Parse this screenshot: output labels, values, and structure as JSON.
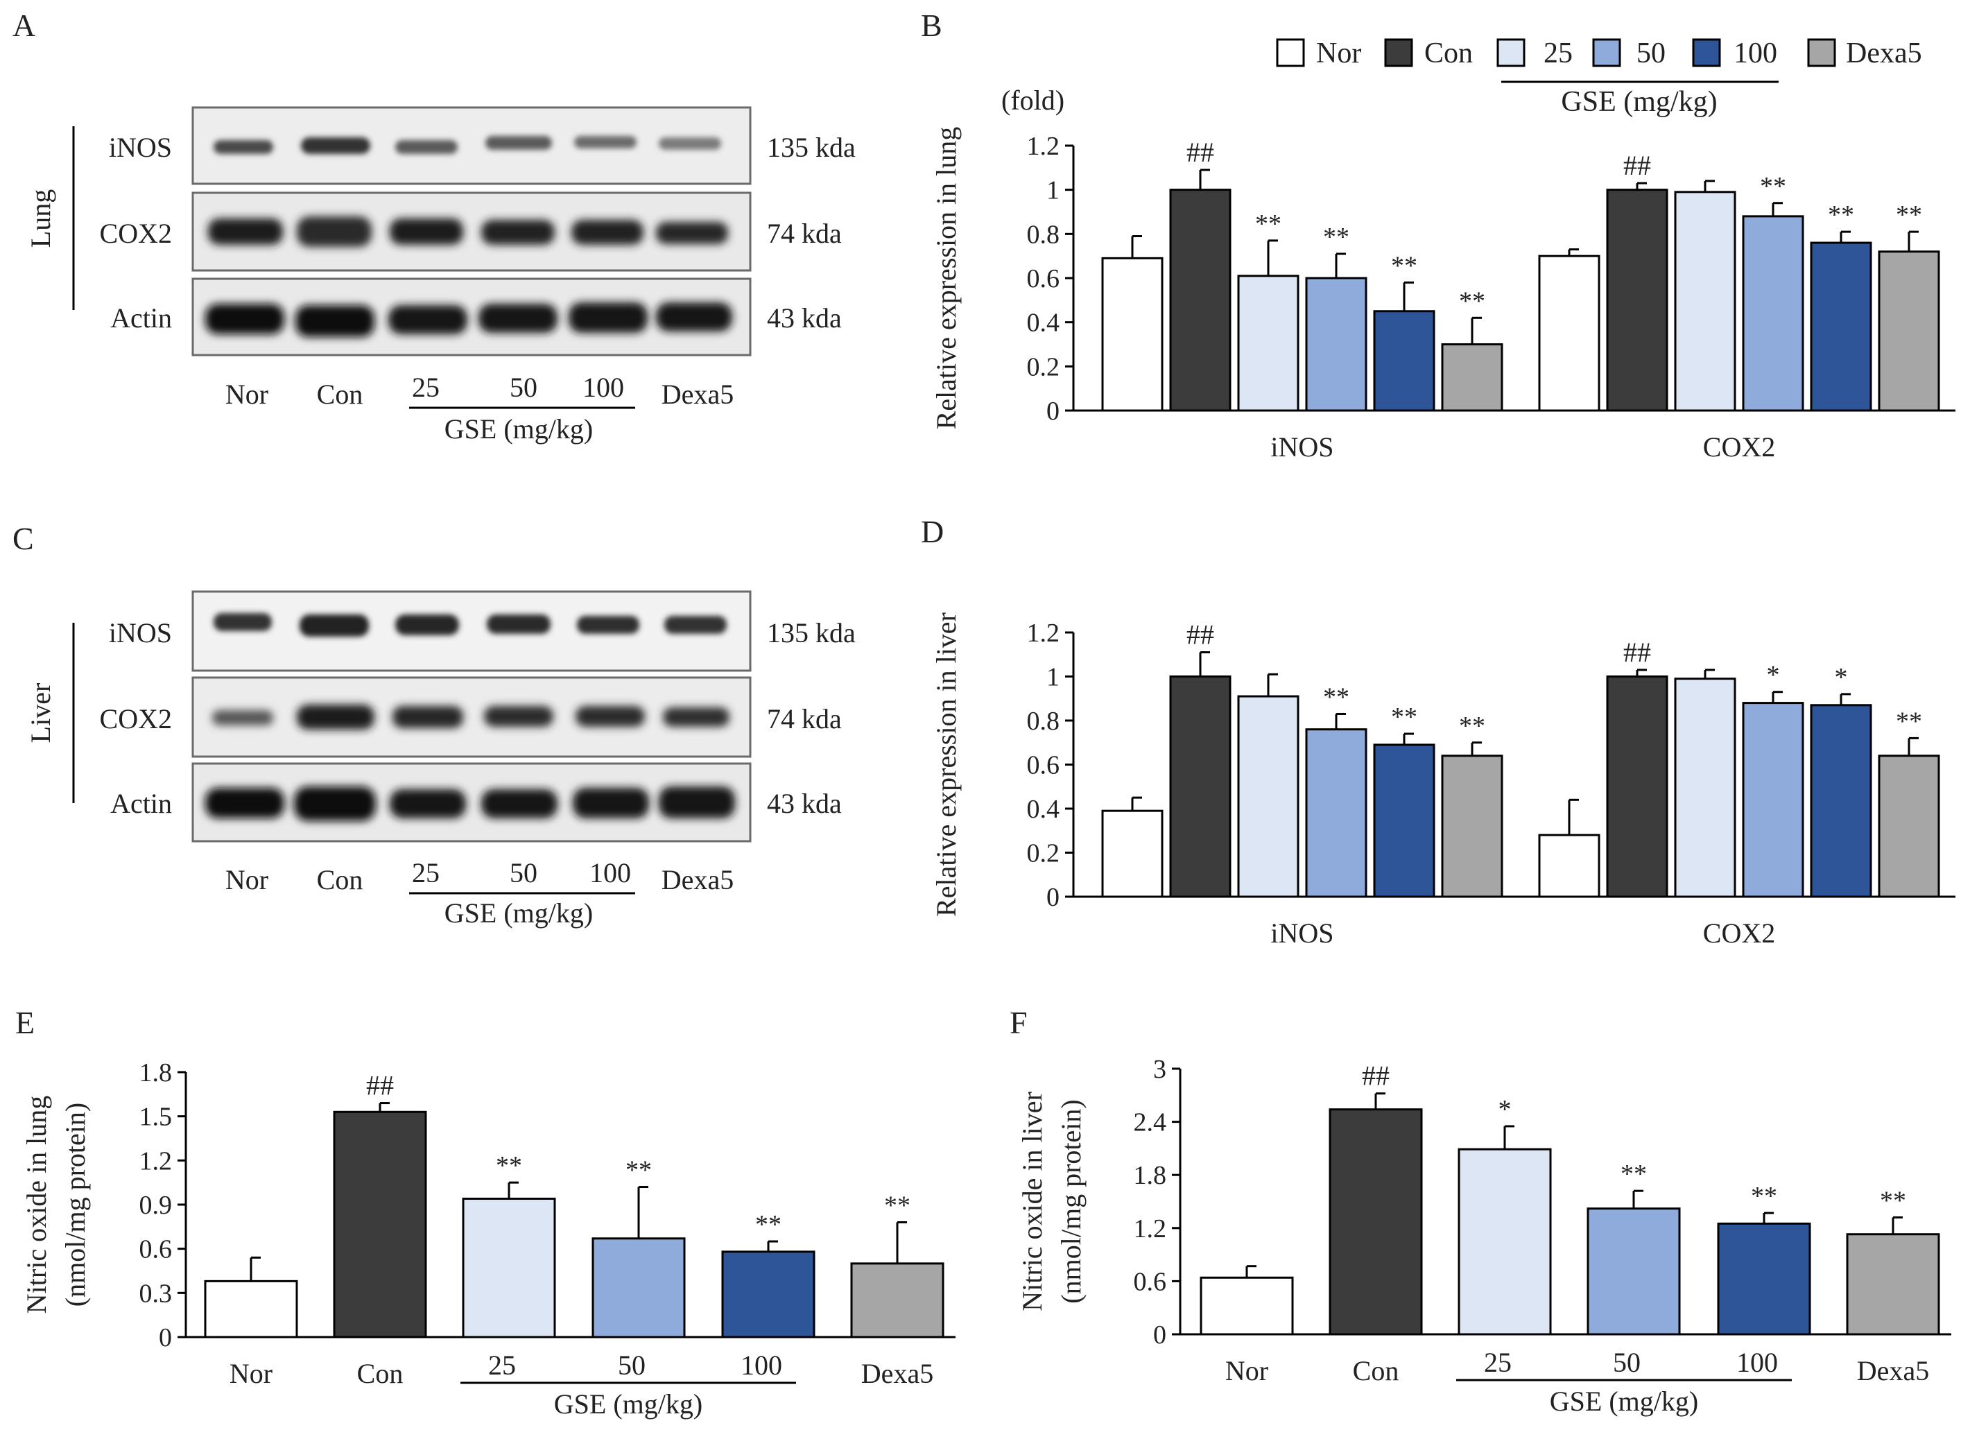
{
  "panel_labels": [
    "A",
    "B",
    "C",
    "D",
    "E",
    "F"
  ],
  "colors": {
    "nor": "#ffffff",
    "con": "#3c3c3c",
    "g25": "#dce6f4",
    "g50": "#8eabdc",
    "g100": "#2e5597",
    "dexa": "#a6a6a6",
    "axis": "#000000"
  },
  "legend": {
    "items": [
      "Nor",
      "Con",
      "25",
      "50",
      "100",
      "Dexa5"
    ],
    "group_label": "GSE (mg/kg)"
  },
  "blot_lung": {
    "tissue": "Lung",
    "rows": [
      {
        "protein": "iNOS",
        "size": "135 kda"
      },
      {
        "protein": "COX2",
        "size": "74 kda"
      },
      {
        "protein": "Actin",
        "size": "43 kda"
      }
    ],
    "lanes": [
      "Nor",
      "Con",
      "25",
      "50",
      "100",
      "Dexa5"
    ],
    "group_label": "GSE (mg/kg)"
  },
  "blot_liver": {
    "tissue": "Liver",
    "rows": [
      {
        "protein": "iNOS",
        "size": "135 kda"
      },
      {
        "protein": "COX2",
        "size": "74 kda"
      },
      {
        "protein": "Actin",
        "size": "43 kda"
      }
    ],
    "lanes": [
      "Nor",
      "Con",
      "25",
      "50",
      "100",
      "Dexa5"
    ],
    "group_label": "GSE (mg/kg)"
  },
  "chart_data": [
    {
      "panel": "B",
      "type": "bar",
      "ylabel": "Relative  expression  in  lung",
      "unit_label": "(fold)",
      "yticks": [
        "0",
        "0.2",
        "0.4",
        "0.6",
        "0.8",
        "1",
        "1.2"
      ],
      "ylim": [
        0,
        1.2
      ],
      "categories": [
        "iNOS",
        "COX2"
      ],
      "series": [
        {
          "name": "Nor",
          "values": [
            0.69,
            0.7
          ],
          "errors": [
            0.1,
            0.03
          ],
          "marks": [
            "",
            ""
          ]
        },
        {
          "name": "Con",
          "values": [
            1.0,
            1.0
          ],
          "errors": [
            0.09,
            0.03
          ],
          "marks": [
            "##",
            "##"
          ]
        },
        {
          "name": "25",
          "values": [
            0.61,
            0.99
          ],
          "errors": [
            0.16,
            0.05
          ],
          "marks": [
            "**",
            ""
          ]
        },
        {
          "name": "50",
          "values": [
            0.6,
            0.88
          ],
          "errors": [
            0.11,
            0.06
          ],
          "marks": [
            "**",
            "**"
          ]
        },
        {
          "name": "100",
          "values": [
            0.45,
            0.76
          ],
          "errors": [
            0.13,
            0.05
          ],
          "marks": [
            "**",
            "**"
          ]
        },
        {
          "name": "Dexa5",
          "values": [
            0.3,
            0.72
          ],
          "errors": [
            0.12,
            0.09
          ],
          "marks": [
            "**",
            "**"
          ]
        }
      ]
    },
    {
      "panel": "D",
      "type": "bar",
      "ylabel": "Relative  expression  in  liver",
      "yticks": [
        "0",
        "0.2",
        "0.4",
        "0.6",
        "0.8",
        "1",
        "1.2"
      ],
      "ylim": [
        0,
        1.2
      ],
      "categories": [
        "iNOS",
        "COX2"
      ],
      "series": [
        {
          "name": "Nor",
          "values": [
            0.39,
            0.28
          ],
          "errors": [
            0.06,
            0.16
          ],
          "marks": [
            "",
            ""
          ]
        },
        {
          "name": "Con",
          "values": [
            1.0,
            1.0
          ],
          "errors": [
            0.11,
            0.03
          ],
          "marks": [
            "##",
            "##"
          ]
        },
        {
          "name": "25",
          "values": [
            0.91,
            0.99
          ],
          "errors": [
            0.1,
            0.04
          ],
          "marks": [
            "",
            ""
          ]
        },
        {
          "name": "50",
          "values": [
            0.76,
            0.88
          ],
          "errors": [
            0.07,
            0.05
          ],
          "marks": [
            "**",
            "*"
          ]
        },
        {
          "name": "100",
          "values": [
            0.69,
            0.87
          ],
          "errors": [
            0.05,
            0.05
          ],
          "marks": [
            "**",
            "*"
          ]
        },
        {
          "name": "Dexa5",
          "values": [
            0.64,
            0.64
          ],
          "errors": [
            0.06,
            0.08
          ],
          "marks": [
            "**",
            "**"
          ]
        }
      ]
    },
    {
      "panel": "E",
      "type": "bar",
      "ylabel": "Nitric  oxide  in  lung",
      "ylabel2": "(nmol/mg  protein)",
      "yticks": [
        "0",
        "0.3",
        "0.6",
        "0.9",
        "1.2",
        "1.5",
        "1.8"
      ],
      "ylim": [
        0,
        1.8
      ],
      "categories": [
        "Nor",
        "Con",
        "25",
        "50",
        "100",
        "Dexa5"
      ],
      "group_label": "GSE (mg/kg)",
      "values": [
        0.38,
        1.53,
        0.94,
        0.67,
        0.58,
        0.5
      ],
      "errors": [
        0.16,
        0.06,
        0.11,
        0.35,
        0.07,
        0.28
      ],
      "marks": [
        "",
        "##",
        "**",
        "**",
        "**",
        "**"
      ]
    },
    {
      "panel": "F",
      "type": "bar",
      "ylabel": "Nitric  oxide  in  liver",
      "ylabel2": "(nmol/mg  protein)",
      "yticks": [
        "0",
        "0.6",
        "1.2",
        "1.8",
        "2.4",
        "3"
      ],
      "ylim": [
        0,
        3
      ],
      "categories": [
        "Nor",
        "Con",
        "25",
        "50",
        "100",
        "Dexa5"
      ],
      "group_label": "GSE (mg/kg)",
      "values": [
        0.64,
        2.54,
        2.09,
        1.42,
        1.25,
        1.13
      ],
      "errors": [
        0.13,
        0.18,
        0.26,
        0.2,
        0.12,
        0.19
      ],
      "marks": [
        "",
        "##",
        "*",
        "**",
        "**",
        "**"
      ]
    }
  ]
}
